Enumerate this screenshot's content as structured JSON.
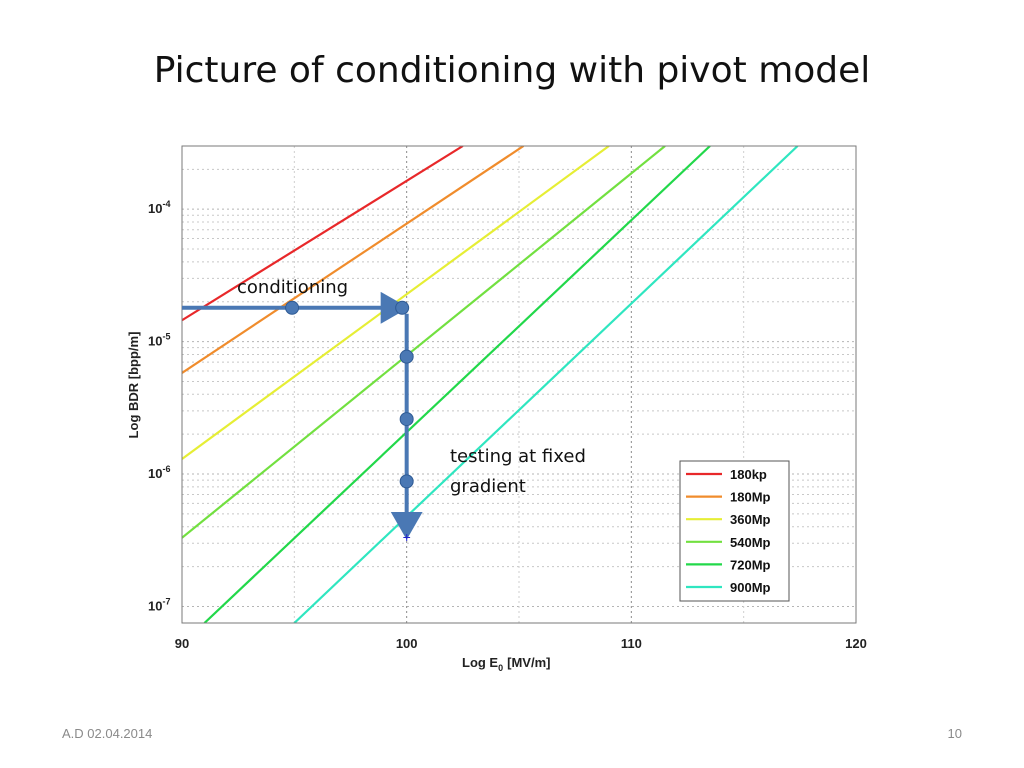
{
  "slide": {
    "title": "Picture of conditioning with pivot model",
    "footer_left": "A.D 02.04.2014",
    "page_number": "10"
  },
  "chart_data": {
    "type": "line",
    "xlabel_main": "Log E",
    "xlabel_sub": "0",
    "xlabel_unit": "[MV/m]",
    "ylabel": "Log BDR [bpp/m]",
    "xlim": [
      90,
      120
    ],
    "ylim": [
      7.5e-08,
      0.0003
    ],
    "yscale": "log",
    "grid": true,
    "x_ticks": [
      "90",
      "100",
      "110",
      "120"
    ],
    "y_ticks": [
      {
        "base": "10",
        "exp": "-4"
      },
      {
        "base": "10",
        "exp": "-5"
      },
      {
        "base": "10",
        "exp": "-6"
      },
      {
        "base": "10",
        "exp": "-7"
      }
    ],
    "legend_position": "bottom-right",
    "series": [
      {
        "name": "180kp",
        "color": "#e8282a",
        "x": [
          90,
          102.5
        ],
        "y": [
          1.45e-05,
          0.0003
        ]
      },
      {
        "name": "180Mp",
        "color": "#f08c2c",
        "x": [
          90,
          105.2
        ],
        "y": [
          5.8e-06,
          0.0003
        ]
      },
      {
        "name": "360Mp",
        "color": "#e6ee35",
        "x": [
          90,
          109.0
        ],
        "y": [
          1.3e-06,
          0.0003
        ]
      },
      {
        "name": "540Mp",
        "color": "#72e040",
        "x": [
          90,
          111.5
        ],
        "y": [
          3.3e-07,
          0.0003
        ]
      },
      {
        "name": "720Mp",
        "color": "#22d84a",
        "x": [
          91,
          113.5
        ],
        "y": [
          7.5e-08,
          0.0003
        ]
      },
      {
        "name": "900Mp",
        "color": "#2fe6c0",
        "x": [
          95,
          117.4
        ],
        "y": [
          7.5e-08,
          0.0003
        ]
      }
    ],
    "annotations": {
      "conditioning_label": "conditioning",
      "testing_label_line1": "testing at fixed",
      "testing_label_line2": "gradient",
      "conditioning_arrow": {
        "x_from": 90,
        "x_to": 100,
        "y": 1.8e-05
      },
      "testing_arrow": {
        "x": 100,
        "y_from": 1.8e-05,
        "y_to": 3.3e-07
      },
      "markers": [
        {
          "x": 94.9,
          "y": 1.8e-05
        },
        {
          "x": 99.8,
          "y": 1.8e-05
        },
        {
          "x": 100,
          "y": 7.7e-06
        },
        {
          "x": 100,
          "y": 2.6e-06
        },
        {
          "x": 100,
          "y": 8.8e-07
        }
      ]
    },
    "accent_color": "#4a78b4"
  }
}
